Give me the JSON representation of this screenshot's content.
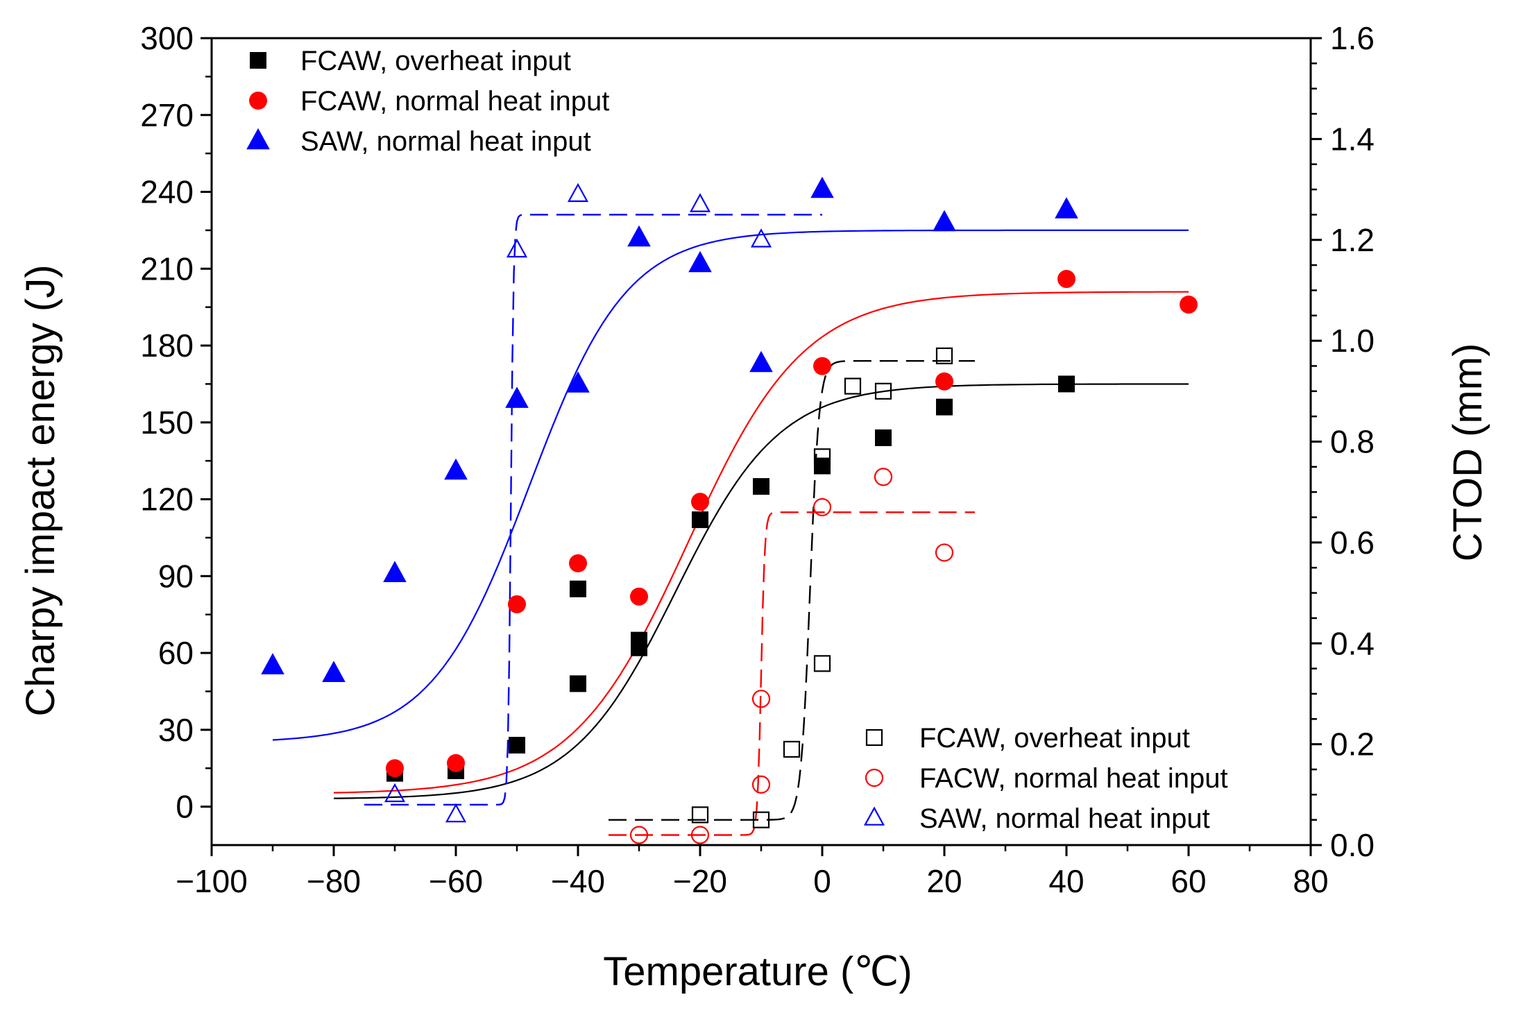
{
  "chart_data": {
    "type": "scatter",
    "title": "",
    "xlabel": "Temperature (℃)",
    "ylabel_left": "Charpy impact energy (J)",
    "ylabel_right": "CTOD (mm)",
    "xlim": [
      -100,
      80
    ],
    "ylim_left": [
      -15,
      300
    ],
    "ylim_right": [
      0.0,
      1.6
    ],
    "x_ticks": [
      -100,
      -80,
      -60,
      -40,
      -20,
      0,
      20,
      40,
      60,
      80
    ],
    "x_tick_labels": [
      "−100",
      "−80",
      "−60",
      "−40",
      "−20",
      "0",
      "20",
      "40",
      "60",
      "80"
    ],
    "y_left_ticks": [
      0,
      30,
      60,
      90,
      120,
      150,
      180,
      210,
      240,
      270,
      300
    ],
    "y_left_tick_labels": [
      "0",
      "30",
      "60",
      "90",
      "120",
      "150",
      "180",
      "210",
      "240",
      "270",
      "300"
    ],
    "y_right_ticks": [
      0.0,
      0.2,
      0.4,
      0.6,
      0.8,
      1.0,
      1.2,
      1.4,
      1.6
    ],
    "y_right_tick_labels": [
      "0.0",
      "0.2",
      "0.4",
      "0.6",
      "0.8",
      "1.0",
      "1.2",
      "1.4",
      "1.6"
    ],
    "charpy_series": [
      {
        "name": "FCAW, overheat input",
        "color": "#000000",
        "marker": "square",
        "axis": "left",
        "x": [
          -70,
          -60,
          -50,
          -40,
          -40,
          -30,
          -30,
          -20,
          -10,
          0,
          10,
          20,
          40
        ],
        "y": [
          13,
          14,
          24,
          48,
          85,
          62,
          65,
          112,
          125,
          133,
          144,
          156,
          165
        ]
      },
      {
        "name": "FCAW, normal heat input",
        "color": "#ff0000",
        "marker": "circle",
        "axis": "left",
        "x": [
          -70,
          -60,
          -50,
          -40,
          -30,
          -20,
          0,
          20,
          40,
          60
        ],
        "y": [
          15,
          17,
          79,
          95,
          82,
          119,
          172,
          166,
          206,
          196
        ]
      },
      {
        "name": "SAW, normal heat input",
        "color": "#0000ff",
        "marker": "triangle",
        "axis": "left",
        "x": [
          -90,
          -80,
          -70,
          -60,
          -50,
          -40,
          -30,
          -20,
          -10,
          0,
          20,
          40
        ],
        "y": [
          55,
          52,
          91,
          131,
          159,
          165,
          222,
          212,
          173,
          241,
          228,
          233
        ]
      }
    ],
    "charpy_fits": [
      {
        "name": "FCAW, overheat input fit",
        "color": "#000000",
        "A": 3,
        "B": 162,
        "T0": -24,
        "C": 17,
        "x_range": [
          -80,
          60
        ]
      },
      {
        "name": "FCAW, normal heat input fit",
        "color": "#ff0000",
        "A": 5,
        "B": 196,
        "T0": -22,
        "C": 19,
        "x_range": [
          -80,
          60
        ]
      },
      {
        "name": "SAW, normal heat input fit",
        "color": "#0000ff",
        "A": 25,
        "B": 200,
        "T0": -48,
        "C": 16,
        "x_range": [
          -90,
          60
        ]
      }
    ],
    "ctod_series": [
      {
        "name": "FCAW, overheat input",
        "color": "#000000",
        "marker": "open-square",
        "axis": "right",
        "x": [
          -20,
          -10,
          -5,
          0,
          0,
          5,
          10,
          20
        ],
        "y": [
          0.06,
          0.05,
          0.19,
          0.77,
          0.36,
          0.91,
          0.9,
          0.97
        ]
      },
      {
        "name": "FACW, normal heat input",
        "color": "#ff0000",
        "marker": "open-circle",
        "axis": "right",
        "x": [
          -30,
          -20,
          -10,
          -10,
          0,
          10,
          20
        ],
        "y": [
          0.02,
          0.02,
          0.12,
          0.29,
          0.67,
          0.73,
          0.58
        ]
      },
      {
        "name": "SAW, normal heat input",
        "color": "#0000ff",
        "marker": "open-triangle",
        "axis": "right",
        "x": [
          -70,
          -60,
          -50,
          -40,
          -20,
          -10
        ],
        "y": [
          0.1,
          0.06,
          1.18,
          1.29,
          1.27,
          1.2
        ]
      }
    ],
    "ctod_fits": [
      {
        "name": "FCAW, overheat input fit",
        "color": "#000000",
        "lower": 0.05,
        "upper": 0.96,
        "T0": -2,
        "C": 1.5,
        "x_range": [
          -35,
          25
        ]
      },
      {
        "name": "FACW, normal heat input fit",
        "color": "#ff0000",
        "lower": 0.02,
        "upper": 0.66,
        "T0": -10,
        "C": 0.6,
        "x_range": [
          -35,
          25
        ]
      },
      {
        "name": "SAW, normal heat input fit",
        "color": "#0000ff",
        "lower": 0.08,
        "upper": 1.25,
        "T0": -51,
        "C": 0.45,
        "x_range": [
          -75,
          0
        ]
      }
    ],
    "legend_top_left": [
      {
        "label": "FCAW, overheat input",
        "marker": "square",
        "color": "#000000"
      },
      {
        "label": "FCAW, normal heat input",
        "marker": "circle",
        "color": "#ff0000"
      },
      {
        "label": "SAW, normal heat input",
        "marker": "triangle",
        "color": "#0000ff"
      }
    ],
    "legend_bottom_right": [
      {
        "label": "FCAW, overheat input",
        "marker": "open-square",
        "color": "#000000"
      },
      {
        "label": "FACW, normal heat input",
        "marker": "open-circle",
        "color": "#ff0000"
      },
      {
        "label": "SAW, normal heat input",
        "marker": "open-triangle",
        "color": "#0000ff"
      }
    ]
  }
}
